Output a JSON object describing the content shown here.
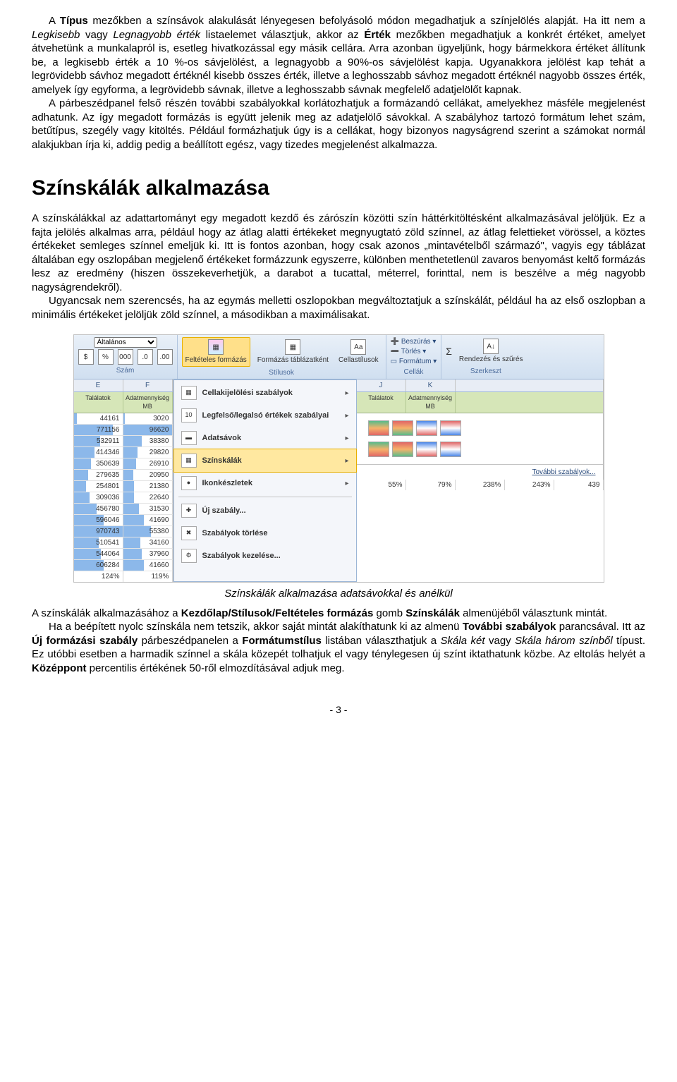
{
  "p1": "A Típus mezőkben a színsávok alakulását lényegesen befolyásoló módon megadhatjuk a színjelölés alapját. Ha itt nem a Legkisebb vagy Legnagyobb érték listaelemet választjuk, akkor az Érték mezőkben  megadhatjuk a konkrét értéket, amelyet átvehetünk a munkalapról is, esetleg hivatkozással egy másik cellára. Arra azonban ügyeljünk, hogy bármekkora értéket állítunk be, a legkisebb érték a 10 %-os sávjelölést, a legnagyobb a 90%-os sávjelölést kapja. Ugyanakkora jelölést kap tehát a legrövidebb sávhoz megadott értéknél kisebb összes érték, illetve a leghosszabb sávhoz megadott értéknél nagyobb összes érték, amelyek így egyforma, a legrövidebb sávnak, illetve a leghosszabb sávnak megfelelő adatjelölőt kapnak.",
  "p2": "A párbeszédpanel felső részén további szabályokkal korlátozhatjuk a formázandó cellákat, amelyekhez másféle megjelenést adhatunk. Az így megadott formázás is együtt jelenik meg az adatjelölő sávokkal. A szabályhoz tartozó formátum lehet szám, betűtípus, szegély vagy kitöltés. Például formázhatjuk úgy is a cellákat, hogy bizonyos nagyságrend szerint a számokat normál alakjukban írja ki, addig pedig a beállított egész, vagy tizedes megjelenést alkalmazza.",
  "h2": "Színskálák alkalmazása",
  "p3": "A színskálákkal az adattartományt egy megadott kezdő és zárószín közötti szín háttérkitöltésként alkalmazásával jelöljük. Ez a fajta jelölés alkalmas arra, például hogy az átlag alatti értékeket megnyugtató zöld színnel, az átlag felettieket vörössel, a köztes értékeket semleges színnel emeljük ki. Itt is fontos azonban, hogy csak azonos „mintavételből származó\", vagyis egy táblázat általában egy oszlopában megjelenő értékeket formázzunk egyszerre, különben menthetetlenül zavaros benyomást keltő formázás lesz az eredmény (hiszen összekeverhetjük, a darabot a tucattal, méterrel, forinttal, nem is beszélve a még nagyobb nagyságrendekről).",
  "p4": "Ugyancsak nem szerencsés, ha az egymás melletti oszlopokban megváltoztatjuk a színskálát, például ha az első oszlopban a minimális értékeket jelöljük zöld színnel, a másodikban a maximálisakat.",
  "caption": "Színskálák alkalmazása adatsávokkal és anélkül",
  "p5a": "A színskálák alkalmazásához a ",
  "p5b": "Kezdőlap/Stílusok/Feltételes formázás",
  "p5c": " gomb ",
  "p5d": "Színskálák",
  "p5e": " almenüjéből választunk mintát.",
  "p6a": "Ha a beépített nyolc színskála nem tetszik, akkor saját mintát alakíthatunk ki az almenü ",
  "p6b": "További szabályok",
  "p6c": " parancsával. Itt az ",
  "p6d": "Új formázási szabály",
  "p6e": " párbeszédpanelen a ",
  "p6f": "Formátumstílus",
  "p6g": " listában választhatjuk a ",
  "p6h": "Skála két",
  "p6i": " vagy ",
  "p6j": "Skála három színből",
  "p6k": " típust. Ez utóbbi esetben a harmadik színnel a skála közepét tolhatjuk el vagy ténylegesen új színt iktathatunk közbe. Az eltolás helyét a ",
  "p6l": "Középpont",
  "p6m": " percentilis értékének 50-ről elmozdításával adjuk meg.",
  "footer": "- 3 -",
  "excel": {
    "ribbon": {
      "number_fmt": "Általános",
      "group_number": "Szám",
      "cond_fmt": "Feltételes formázás",
      "fmt_table": "Formázás táblázatként",
      "cell_styles": "Cellastílusok",
      "group_styles": "Stílusok",
      "insert": "Beszúrás",
      "delete": "Törlés",
      "format": "Formátum",
      "group_cells": "Cellák",
      "sort": "Rendezés és szűrés",
      "group_edit": "Szerkeszt"
    },
    "left_cols": [
      "E",
      "F"
    ],
    "left_headers": [
      "Találatok",
      "Adatmennyiség MB"
    ],
    "left_data": [
      [
        "44161",
        "3020"
      ],
      [
        "771156",
        "96620"
      ],
      [
        "532911",
        "38380"
      ],
      [
        "414346",
        "29820"
      ],
      [
        "350639",
        "26910"
      ],
      [
        "279635",
        "20950"
      ],
      [
        "254801",
        "21380"
      ],
      [
        "309036",
        "22640"
      ],
      [
        "456780",
        "31530"
      ],
      [
        "596046",
        "41690"
      ],
      [
        "970743",
        "55380"
      ],
      [
        "510541",
        "34160"
      ],
      [
        "544064",
        "37960"
      ],
      [
        "606284",
        "41660"
      ]
    ],
    "left_bar_pct": [
      6,
      80,
      55,
      43,
      36,
      29,
      26,
      32,
      47,
      61,
      100,
      52,
      56,
      62
    ],
    "left_bar2_pct": [
      4,
      100,
      39,
      30,
      27,
      21,
      22,
      23,
      32,
      43,
      57,
      35,
      39,
      43
    ],
    "left_bottom_pct": [
      "124%",
      "119%"
    ],
    "menu": [
      "Cellakijelölési szabályok",
      "Legfelső/legalsó értékek szabályai",
      "Adatsávok",
      "Színskálák",
      "Ikonkészletek",
      "Új szabály...",
      "Szabályok törlése",
      "Szabályok kezelése..."
    ],
    "menu_hover_idx": 3,
    "right_cols": [
      "J",
      "K"
    ],
    "right_headers": [
      "Találatok",
      "Adatmennyiség MB"
    ],
    "swatch_colors": [
      [
        "#57bb8a",
        "#f6b26b",
        "#e06666"
      ],
      [
        "#e06666",
        "#f6b26b",
        "#57bb8a"
      ],
      [
        "#4a86e8",
        "#ffffff",
        "#e06666"
      ],
      [
        "#e06666",
        "#ffffff",
        "#4a86e8"
      ]
    ],
    "more_rules": "További szabályok...",
    "right_bottom_pct": [
      "55%",
      "79%",
      "238%",
      "243%",
      "439"
    ]
  },
  "colors": {
    "bar": "#8cb8ea",
    "header_green": "#d6e6b8",
    "ribbon_top": "#e9f0f8",
    "ribbon_bot": "#d0dff0"
  }
}
